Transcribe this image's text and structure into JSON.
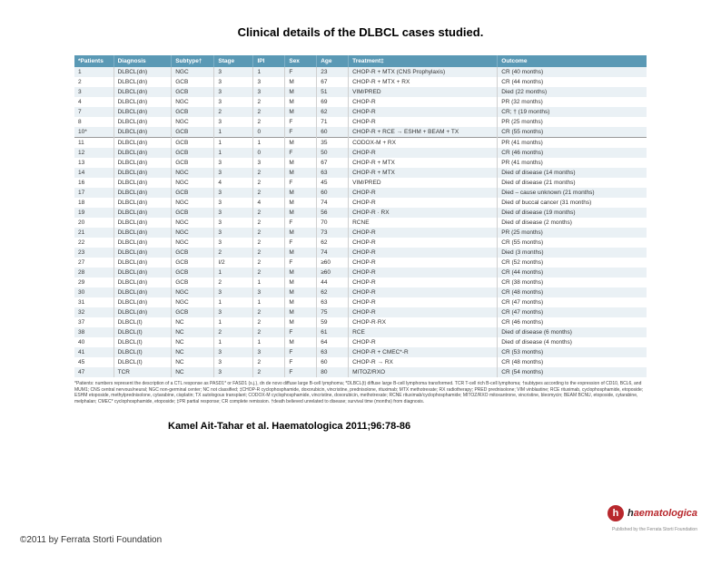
{
  "title": "Clinical details of the DLBCL cases studied.",
  "columns": [
    "*Patients",
    "Diagnosis",
    "Subtype†",
    "Stage",
    "IPI",
    "Sex",
    "Age",
    "Treatment‡",
    "Outcome"
  ],
  "rows": [
    [
      "1",
      "DLBCL(dn)",
      "NGC",
      "3",
      "1",
      "F",
      "23",
      "CHOP-R + MTX (CNS Prophylaxis)",
      "CR (40 months)"
    ],
    [
      "2",
      "DLBCL(dn)",
      "GCB",
      "3",
      "3",
      "M",
      "67",
      "CHOP-R + MTX + RX",
      "CR (44 months)"
    ],
    [
      "3",
      "DLBCL(dn)",
      "GCB",
      "3",
      "3",
      "M",
      "51",
      "VIM/PRED",
      "Died (22 months)"
    ],
    [
      "4",
      "DLBCL(dn)",
      "NGC",
      "3",
      "2",
      "M",
      "69",
      "CHOP-R",
      "PR (32 months)"
    ],
    [
      "7",
      "DLBCL(dn)",
      "GCB",
      "2",
      "2",
      "M",
      "62",
      "CHOP-R",
      "CR; † (19 months)"
    ],
    [
      "8",
      "DLBCL(dn)",
      "NGC",
      "3",
      "2",
      "F",
      "71",
      "CHOP-R",
      "PR (25 months)"
    ],
    [
      "10*",
      "DLBCL(dn)",
      "GCB",
      "1",
      "0",
      "F",
      "60",
      "CHOP-R + RCE → ESHM + BEAM + TX",
      "CR (55 months)"
    ],
    [
      "11",
      "DLBCL(dn)",
      "GCB",
      "1",
      "1",
      "M",
      "35",
      "CODOX-M + RX",
      "PR (41 months)"
    ],
    [
      "12",
      "DLBCL(dn)",
      "GCB",
      "1",
      "0",
      "F",
      "50",
      "CHOP-R",
      "CR (46 months)"
    ],
    [
      "13",
      "DLBCL(dn)",
      "GCB",
      "3",
      "3",
      "M",
      "67",
      "CHOP-R + MTX",
      "PR (41 months)"
    ],
    [
      "14",
      "DLBCL(dn)",
      "NGC",
      "3",
      "2",
      "M",
      "63",
      "CHOP-R + MTX",
      "Died of disease (14 months)"
    ],
    [
      "16",
      "DLBCL(dn)",
      "NGC",
      "4",
      "2",
      "F",
      "45",
      "VIM/PRED",
      "Died of disease (21 months)"
    ],
    [
      "17",
      "DLBCL(dn)",
      "GCB",
      "3",
      "2",
      "M",
      "60",
      "CHOP-R",
      "Died – cause unknown (21 months)"
    ],
    [
      "18",
      "DLBCL(dn)",
      "NGC",
      "3",
      "4",
      "M",
      "74",
      "CHOP-R",
      "Died of buccal cancer (31 months)"
    ],
    [
      "19",
      "DLBCL(dn)",
      "GCB",
      "3",
      "2",
      "M",
      "56",
      "CHOP-R · RX",
      "Died of disease (19 months)"
    ],
    [
      "20",
      "DLBCL(dn)",
      "NGC",
      "3",
      "2",
      "F",
      "70",
      "RCNE",
      "Died of disease (2 months)"
    ],
    [
      "21",
      "DLBCL(dn)",
      "NGC",
      "3",
      "2",
      "M",
      "73",
      "CHOP-R",
      "PR (25 months)"
    ],
    [
      "22",
      "DLBCL(dn)",
      "NGC",
      "3",
      "2",
      "F",
      "62",
      "CHOP-R",
      "CR (55 months)"
    ],
    [
      "23",
      "DLBCL(dn)",
      "GCB",
      "2",
      "2",
      "M",
      "74",
      "CHOP-R",
      "Died (3 months)"
    ],
    [
      "27",
      "DLBCL(dn)",
      "GCB",
      "I/2",
      "2",
      "F",
      "≥60",
      "CHOP-R",
      "CR (52 months)"
    ],
    [
      "28",
      "DLBCL(dn)",
      "GCB",
      "1",
      "2",
      "M",
      "≥60",
      "CHOP-R",
      "CR (44 months)"
    ],
    [
      "29",
      "DLBCL(dn)",
      "GCB",
      "2",
      "1",
      "M",
      "44",
      "CHOP-R",
      "CR (38 months)"
    ],
    [
      "30",
      "DLBCL(dn)",
      "NGC",
      "3",
      "3",
      "M",
      "62",
      "CHOP-R",
      "CR (48 months)"
    ],
    [
      "31",
      "DLBCL(dn)",
      "NGC",
      "1",
      "1",
      "M",
      "63",
      "CHOP-R",
      "CR (47 months)"
    ],
    [
      "32",
      "DLBCL(dn)",
      "GCB",
      "3",
      "2",
      "M",
      "75",
      "CHOP-R",
      "CR (47 months)"
    ],
    [
      "37",
      "DLBCL(t)",
      "NC",
      "1",
      "2",
      "M",
      "59",
      "CHOP-R·RX",
      "CR (46 months)"
    ],
    [
      "38",
      "DLBCL(t)",
      "NC",
      "2",
      "2",
      "F",
      "61",
      "RCE",
      "Died of disease (6 months)"
    ],
    [
      "40",
      "DLBCL(t)",
      "NC",
      "1",
      "1",
      "M",
      "64",
      "CHOP-R",
      "Died of disease (4 months)"
    ],
    [
      "41",
      "DLBCL(t)",
      "NC",
      "3",
      "3",
      "F",
      "63",
      "CHOP-R + CMEC*-R",
      "CR (53 months)"
    ],
    [
      "45",
      "DLBCL(t)",
      "NC",
      "3",
      "2",
      "F",
      "60",
      "CHOP-R → RX",
      "CR (48 months)"
    ],
    [
      "47",
      "TCR",
      "NC",
      "3",
      "2",
      "F",
      "80",
      "MITOZ/RXO",
      "CR (54 months)"
    ]
  ],
  "section_break_index": 7,
  "footnote": "*Patients: numbers represent the description of a CTL response as PASD1* or FASD1 (s.j.), dn de novo diffuse large B-cell lymphoma; *DLBCL(t) diffuse large B-cell lymphoma transformed. TCR T-cell rich B-cell lymphoma; †subtypes according to the expression of CD10, BCL6, and MUM1; CNS central nervous/neural; NGC non-germinal center; NC not classified; ‡CHOP-R cyclophosphamide, doxorubicin, vincristine, prednisolone, rituximab; MTX methotrexate; RX radiotherapy; PRED prednisolone; VIM vinblastine; RCE rituximab, cyclophosphamide, etoposide; ESHM etoposide, methylprednisolone, cytarabine, cisplatin; TX autologous transplant; CODOX-M cyclophosphamide, vincristine, doxorubicin, methotrexate; RCNE rituximab/cyclophosphamide; MITOZ/RXO mitoxantrone, vincristine, bleomycin; BEAM BCNU, etoposide, cytarabine, melphalan; CMEC* cyclophosphamide, etoposide; ‡PR partial response; CR complete remission. †death believed unrelated to disease; survival time (months) from diagnosis.",
  "citation": "Kamel Ait-Tahar et al. Haematologica 2011;96:78-86",
  "copyright": "©2011 by Ferrata Storti Foundation",
  "logo": {
    "h": "h",
    "rest": "aematologica"
  },
  "logo_sub": "Published by the Ferrata Storti Foundation",
  "colors": {
    "header_bg": "#5a99b5",
    "row_even": "#eaf1f5",
    "brand": "#b8282d"
  }
}
